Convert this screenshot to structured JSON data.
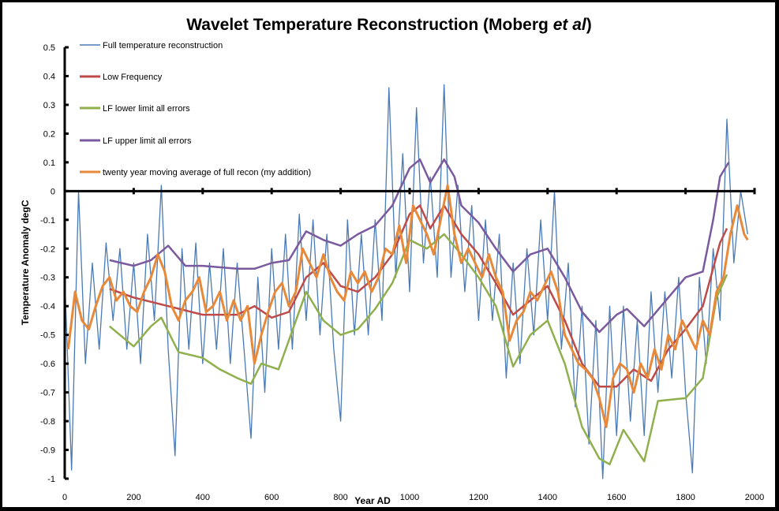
{
  "chart_data": {
    "type": "line",
    "title_main": "Wavelet Temperature Reconstruction (Moberg ",
    "title_italic": "et al",
    "title_end": ")",
    "xlabel": "Year AD",
    "ylabel": "Temperature Anomaly degC",
    "xlim": [
      0,
      2000
    ],
    "ylim": [
      -1,
      0.5
    ],
    "xticks": [
      "0",
      "200",
      "400",
      "600",
      "800",
      "1000",
      "1200",
      "1400",
      "1600",
      "1800",
      "2000"
    ],
    "yticks": [
      "0.5",
      "0.4",
      "0.3",
      "0.2",
      "0.1",
      "0",
      "-0.1",
      "-0.2",
      "-0.3",
      "-0.4",
      "-0.5",
      "-0.6",
      "-0.7",
      "-0.8",
      "-0.9",
      "-1"
    ],
    "grid": false,
    "legend_placement": "top-left",
    "series": [
      {
        "name": "Full temperature reconstruction",
        "color": "#4a7ab5",
        "width": 1.3,
        "x": [
          0,
          20,
          40,
          60,
          80,
          100,
          120,
          140,
          160,
          180,
          200,
          220,
          240,
          260,
          280,
          300,
          320,
          340,
          360,
          380,
          400,
          420,
          440,
          460,
          480,
          500,
          520,
          540,
          560,
          580,
          600,
          620,
          640,
          660,
          680,
          700,
          720,
          740,
          760,
          780,
          800,
          820,
          840,
          860,
          880,
          900,
          920,
          940,
          960,
          980,
          1000,
          1020,
          1040,
          1060,
          1080,
          1100,
          1120,
          1140,
          1160,
          1180,
          1200,
          1220,
          1240,
          1260,
          1280,
          1300,
          1320,
          1340,
          1360,
          1380,
          1400,
          1420,
          1440,
          1460,
          1480,
          1500,
          1520,
          1540,
          1560,
          1580,
          1600,
          1620,
          1640,
          1660,
          1680,
          1700,
          1720,
          1740,
          1760,
          1780,
          1800,
          1820,
          1840,
          1860,
          1880,
          1900,
          1920,
          1940,
          1960,
          1980
        ],
        "y": [
          -0.3,
          -0.97,
          0.0,
          -0.6,
          -0.25,
          -0.55,
          -0.18,
          -0.45,
          -0.2,
          -0.55,
          -0.25,
          -0.6,
          -0.15,
          -0.45,
          0.02,
          -0.55,
          -0.92,
          -0.2,
          -0.55,
          -0.18,
          -0.6,
          -0.25,
          -0.55,
          -0.2,
          -0.6,
          -0.25,
          -0.55,
          -0.86,
          -0.3,
          -0.7,
          -0.2,
          -0.55,
          -0.15,
          -0.55,
          -0.08,
          -0.45,
          -0.1,
          -0.5,
          -0.15,
          -0.55,
          -0.8,
          -0.1,
          -0.5,
          -0.15,
          -0.5,
          -0.1,
          -0.45,
          0.36,
          -0.3,
          0.13,
          -0.35,
          0.29,
          -0.25,
          0.05,
          -0.3,
          0.37,
          -0.3,
          0.02,
          -0.35,
          -0.05,
          -0.45,
          -0.1,
          -0.45,
          -0.15,
          -0.65,
          -0.25,
          -0.6,
          -0.2,
          -0.5,
          -0.1,
          -0.45,
          0.0,
          -0.55,
          -0.25,
          -0.75,
          -0.4,
          -0.88,
          -0.45,
          -1.0,
          -0.4,
          -0.85,
          -0.4,
          -0.8,
          -0.45,
          -0.85,
          -0.35,
          -0.7,
          -0.35,
          -0.65,
          -0.3,
          -0.7,
          -0.98,
          -0.3,
          -0.6,
          -0.2,
          -0.45,
          0.25,
          -0.25,
          0.0,
          -0.15
        ]
      },
      {
        "name": "Low Frequency",
        "color": "#be4b48",
        "width": 2.5,
        "x": [
          130,
          200,
          300,
          400,
          500,
          550,
          600,
          650,
          700,
          750,
          800,
          850,
          900,
          950,
          1000,
          1030,
          1060,
          1100,
          1150,
          1200,
          1250,
          1300,
          1350,
          1400,
          1450,
          1500,
          1550,
          1600,
          1650,
          1700,
          1750,
          1800,
          1850,
          1900,
          1920
        ],
        "y": [
          -0.34,
          -0.37,
          -0.4,
          -0.43,
          -0.43,
          -0.4,
          -0.44,
          -0.42,
          -0.3,
          -0.25,
          -0.33,
          -0.35,
          -0.3,
          -0.22,
          -0.08,
          -0.05,
          -0.13,
          -0.05,
          -0.15,
          -0.22,
          -0.32,
          -0.43,
          -0.38,
          -0.33,
          -0.45,
          -0.6,
          -0.68,
          -0.68,
          -0.62,
          -0.66,
          -0.55,
          -0.48,
          -0.4,
          -0.18,
          -0.13
        ]
      },
      {
        "name": "LF lower limit all errors",
        "color": "#8fb04c",
        "width": 2.5,
        "x": [
          130,
          200,
          250,
          280,
          330,
          400,
          450,
          500,
          540,
          570,
          620,
          700,
          750,
          800,
          850,
          900,
          950,
          1000,
          1050,
          1100,
          1150,
          1200,
          1250,
          1300,
          1350,
          1400,
          1450,
          1500,
          1550,
          1580,
          1620,
          1680,
          1720,
          1800,
          1850,
          1890,
          1920
        ],
        "y": [
          -0.47,
          -0.54,
          -0.47,
          -0.44,
          -0.56,
          -0.58,
          -0.62,
          -0.65,
          -0.67,
          -0.6,
          -0.62,
          -0.35,
          -0.45,
          -0.5,
          -0.48,
          -0.41,
          -0.32,
          -0.17,
          -0.2,
          -0.15,
          -0.22,
          -0.3,
          -0.4,
          -0.61,
          -0.5,
          -0.45,
          -0.6,
          -0.82,
          -0.93,
          -0.95,
          -0.83,
          -0.94,
          -0.73,
          -0.72,
          -0.65,
          -0.37,
          -0.29
        ]
      },
      {
        "name": "LF upper limit all errors",
        "color": "#7a5a9e",
        "width": 2.5,
        "x": [
          130,
          200,
          250,
          300,
          350,
          400,
          500,
          550,
          600,
          650,
          700,
          750,
          800,
          850,
          900,
          950,
          1000,
          1030,
          1060,
          1100,
          1130,
          1150,
          1200,
          1250,
          1300,
          1350,
          1400,
          1450,
          1500,
          1550,
          1600,
          1630,
          1680,
          1750,
          1800,
          1850,
          1880,
          1900,
          1925
        ],
        "y": [
          -0.24,
          -0.26,
          -0.24,
          -0.19,
          -0.26,
          -0.26,
          -0.27,
          -0.27,
          -0.25,
          -0.24,
          -0.14,
          -0.17,
          -0.19,
          -0.15,
          -0.12,
          -0.05,
          0.08,
          0.11,
          0.03,
          0.11,
          0.05,
          -0.05,
          -0.11,
          -0.2,
          -0.28,
          -0.22,
          -0.2,
          -0.3,
          -0.42,
          -0.49,
          -0.43,
          -0.41,
          -0.47,
          -0.37,
          -0.3,
          -0.28,
          -0.1,
          0.05,
          0.1
        ]
      },
      {
        "name": "twenty year moving average of full recon (my addition)",
        "color": "#e8893a",
        "width": 3,
        "x": [
          10,
          30,
          50,
          70,
          90,
          110,
          130,
          150,
          170,
          190,
          210,
          230,
          250,
          270,
          290,
          310,
          330,
          350,
          370,
          390,
          410,
          430,
          450,
          470,
          490,
          510,
          530,
          550,
          570,
          590,
          610,
          630,
          650,
          670,
          690,
          710,
          730,
          750,
          770,
          790,
          810,
          830,
          850,
          870,
          890,
          910,
          930,
          950,
          970,
          990,
          1010,
          1030,
          1050,
          1070,
          1090,
          1110,
          1130,
          1150,
          1170,
          1190,
          1210,
          1230,
          1250,
          1270,
          1290,
          1310,
          1330,
          1350,
          1370,
          1390,
          1410,
          1430,
          1450,
          1470,
          1490,
          1510,
          1530,
          1550,
          1570,
          1590,
          1610,
          1630,
          1650,
          1670,
          1690,
          1710,
          1730,
          1750,
          1770,
          1790,
          1810,
          1830,
          1850,
          1870,
          1890,
          1910,
          1930,
          1950,
          1970,
          1980
        ],
        "y": [
          -0.55,
          -0.35,
          -0.45,
          -0.48,
          -0.4,
          -0.33,
          -0.3,
          -0.38,
          -0.35,
          -0.4,
          -0.42,
          -0.35,
          -0.3,
          -0.22,
          -0.28,
          -0.4,
          -0.45,
          -0.38,
          -0.35,
          -0.3,
          -0.42,
          -0.4,
          -0.35,
          -0.45,
          -0.38,
          -0.45,
          -0.4,
          -0.6,
          -0.5,
          -0.42,
          -0.35,
          -0.32,
          -0.4,
          -0.35,
          -0.2,
          -0.25,
          -0.3,
          -0.22,
          -0.3,
          -0.35,
          -0.38,
          -0.28,
          -0.32,
          -0.28,
          -0.35,
          -0.3,
          -0.2,
          -0.22,
          -0.12,
          -0.25,
          -0.05,
          -0.1,
          -0.15,
          -0.22,
          -0.1,
          0.02,
          -0.15,
          -0.25,
          -0.2,
          -0.25,
          -0.3,
          -0.22,
          -0.3,
          -0.35,
          -0.52,
          -0.45,
          -0.42,
          -0.35,
          -0.38,
          -0.33,
          -0.28,
          -0.35,
          -0.5,
          -0.55,
          -0.6,
          -0.62,
          -0.65,
          -0.72,
          -0.82,
          -0.65,
          -0.6,
          -0.62,
          -0.7,
          -0.6,
          -0.65,
          -0.55,
          -0.62,
          -0.5,
          -0.55,
          -0.45,
          -0.5,
          -0.55,
          -0.45,
          -0.5,
          -0.35,
          -0.3,
          -0.15,
          -0.05,
          -0.15,
          -0.17
        ]
      }
    ]
  }
}
